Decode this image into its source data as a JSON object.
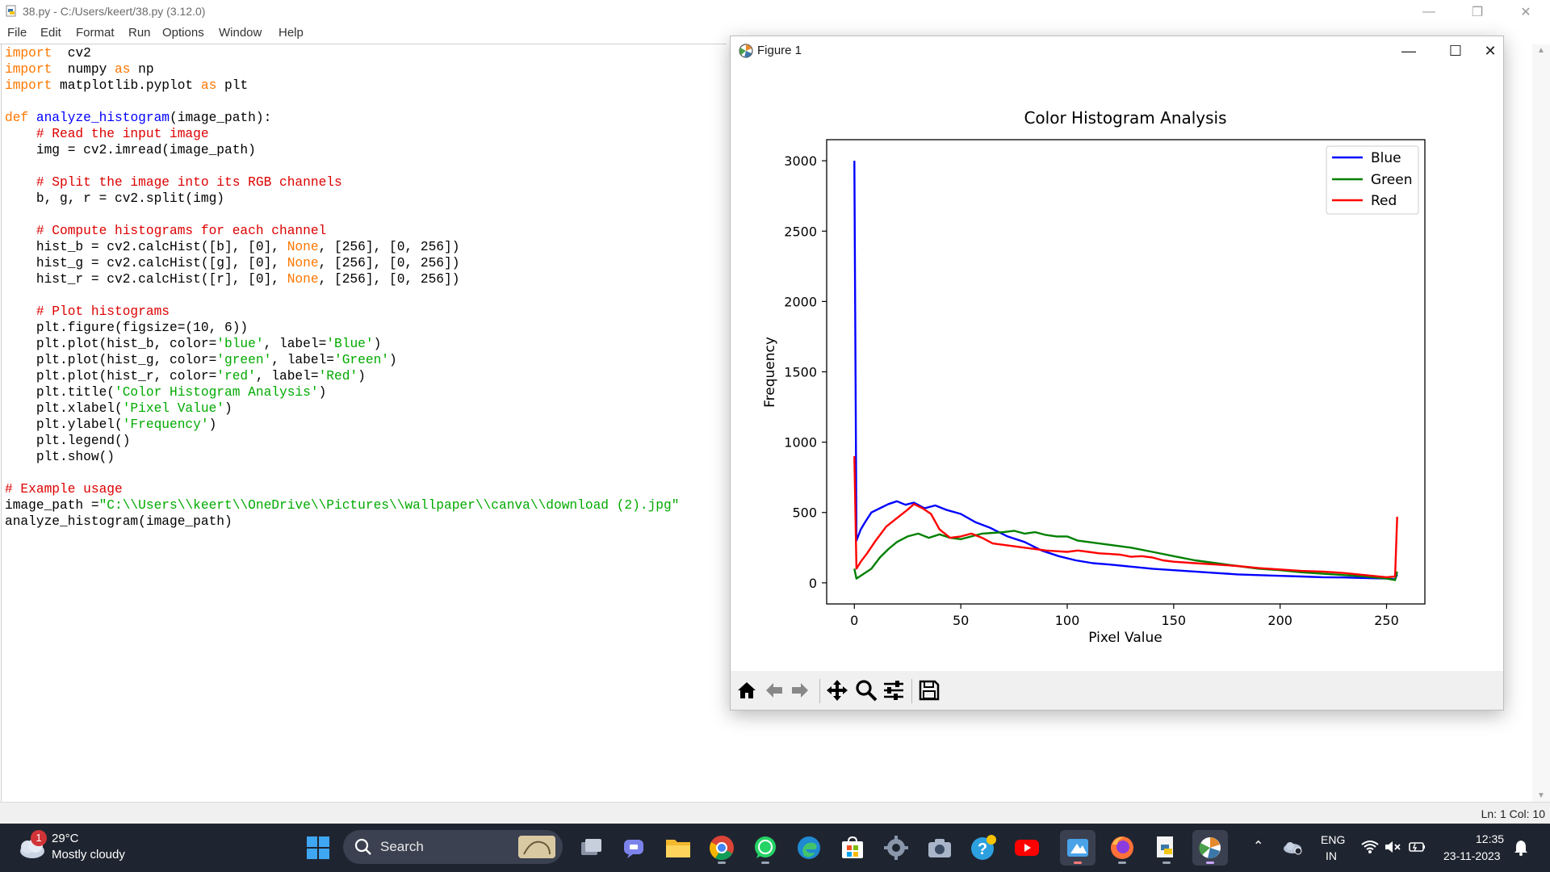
{
  "idle": {
    "title": "38.py - C:/Users/keert/38.py (3.12.0)",
    "menu": [
      "File",
      "Edit",
      "Format",
      "Run",
      "Options",
      "Window",
      "Help"
    ],
    "status": "Ln: 1   Col: 10"
  },
  "code_lines": [
    [
      [
        "kw",
        "import"
      ],
      [
        "",
        "  cv2"
      ]
    ],
    [
      [
        "kw",
        "import"
      ],
      [
        "",
        "  numpy "
      ],
      [
        "kw",
        "as"
      ],
      [
        "",
        " np"
      ]
    ],
    [
      [
        "kw",
        "import"
      ],
      [
        "",
        " matplotlib.pyplot "
      ],
      [
        "kw",
        "as"
      ],
      [
        "",
        " plt"
      ]
    ],
    [],
    [
      [
        "kw",
        "def"
      ],
      [
        "",
        " "
      ],
      [
        "fn",
        "analyze_histogram"
      ],
      [
        "",
        "(image_path):"
      ]
    ],
    [
      [
        "",
        "    "
      ],
      [
        "cm",
        "# Read the input image"
      ]
    ],
    [
      [
        "",
        "    img = cv2.imread(image_path)"
      ]
    ],
    [],
    [
      [
        "",
        "    "
      ],
      [
        "cm",
        "# Split the image into its RGB channels"
      ]
    ],
    [
      [
        "",
        "    b, g, r = cv2.split(img)"
      ]
    ],
    [],
    [
      [
        "",
        "    "
      ],
      [
        "cm",
        "# Compute histograms for each channel"
      ]
    ],
    [
      [
        "",
        "    hist_b = cv2.calcHist([b], [0], "
      ],
      [
        "kw",
        "None"
      ],
      [
        "",
        ", [256], [0, 256])"
      ]
    ],
    [
      [
        "",
        "    hist_g = cv2.calcHist([g], [0], "
      ],
      [
        "kw",
        "None"
      ],
      [
        "",
        ", [256], [0, 256])"
      ]
    ],
    [
      [
        "",
        "    hist_r = cv2.calcHist([r], [0], "
      ],
      [
        "kw",
        "None"
      ],
      [
        "",
        ", [256], [0, 256])"
      ]
    ],
    [],
    [
      [
        "",
        "    "
      ],
      [
        "cm",
        "# Plot histograms"
      ]
    ],
    [
      [
        "",
        "    plt.figure(figsize=(10, 6))"
      ]
    ],
    [
      [
        "",
        "    plt.plot(hist_b, color="
      ],
      [
        "st",
        "'blue'"
      ],
      [
        "",
        ", label="
      ],
      [
        "st",
        "'Blue'"
      ],
      [
        "",
        ")"
      ]
    ],
    [
      [
        "",
        "    plt.plot(hist_g, color="
      ],
      [
        "st",
        "'green'"
      ],
      [
        "",
        ", label="
      ],
      [
        "st",
        "'Green'"
      ],
      [
        "",
        ")"
      ]
    ],
    [
      [
        "",
        "    plt.plot(hist_r, color="
      ],
      [
        "st",
        "'red'"
      ],
      [
        "",
        ", label="
      ],
      [
        "st",
        "'Red'"
      ],
      [
        "",
        ")"
      ]
    ],
    [
      [
        "",
        "    plt.title("
      ],
      [
        "st",
        "'Color Histogram Analysis'"
      ],
      [
        "",
        ")"
      ]
    ],
    [
      [
        "",
        "    plt.xlabel("
      ],
      [
        "st",
        "'Pixel Value'"
      ],
      [
        "",
        ")"
      ]
    ],
    [
      [
        "",
        "    plt.ylabel("
      ],
      [
        "st",
        "'Frequency'"
      ],
      [
        "",
        ")"
      ]
    ],
    [
      [
        "",
        "    plt.legend()"
      ]
    ],
    [
      [
        "",
        "    plt.show()"
      ]
    ],
    [],
    [
      [
        "cm",
        "# Example usage"
      ]
    ],
    [
      [
        "",
        "image_path ="
      ],
      [
        "st",
        "\"C:\\\\Users\\\\keert\\\\OneDrive\\\\Pictures\\\\wallpaper\\\\canva\\\\download (2).jpg\""
      ]
    ],
    [
      [
        "",
        "analyze_histogram(image_path)"
      ]
    ]
  ],
  "figure": {
    "title": "Figure 1"
  },
  "chart_data": {
    "type": "line",
    "title": "Color Histogram Analysis",
    "xlabel": "Pixel Value",
    "ylabel": "Frequency",
    "xlim": [
      -13,
      268
    ],
    "ylim": [
      -150,
      3150
    ],
    "xticks": [
      0,
      50,
      100,
      150,
      200,
      250
    ],
    "yticks": [
      0,
      500,
      1000,
      1500,
      2000,
      2500,
      3000
    ],
    "legend_position": "top-right",
    "series": [
      {
        "name": "Blue",
        "color": "#0000ff",
        "points": [
          [
            0,
            3000
          ],
          [
            1,
            300
          ],
          [
            3,
            380
          ],
          [
            5,
            430
          ],
          [
            8,
            500
          ],
          [
            12,
            530
          ],
          [
            16,
            560
          ],
          [
            20,
            580
          ],
          [
            24,
            555
          ],
          [
            28,
            570
          ],
          [
            33,
            530
          ],
          [
            38,
            550
          ],
          [
            43,
            520
          ],
          [
            50,
            490
          ],
          [
            57,
            430
          ],
          [
            64,
            390
          ],
          [
            72,
            330
          ],
          [
            80,
            290
          ],
          [
            88,
            230
          ],
          [
            96,
            190
          ],
          [
            104,
            160
          ],
          [
            112,
            140
          ],
          [
            120,
            130
          ],
          [
            130,
            115
          ],
          [
            140,
            100
          ],
          [
            150,
            90
          ],
          [
            160,
            80
          ],
          [
            170,
            70
          ],
          [
            180,
            60
          ],
          [
            190,
            55
          ],
          [
            200,
            50
          ],
          [
            210,
            45
          ],
          [
            220,
            40
          ],
          [
            230,
            38
          ],
          [
            240,
            34
          ],
          [
            250,
            30
          ],
          [
            254,
            25
          ],
          [
            255,
            60
          ]
        ]
      },
      {
        "name": "Green",
        "color": "#008000",
        "points": [
          [
            0,
            100
          ],
          [
            1,
            30
          ],
          [
            4,
            60
          ],
          [
            8,
            100
          ],
          [
            12,
            180
          ],
          [
            16,
            240
          ],
          [
            20,
            290
          ],
          [
            25,
            330
          ],
          [
            30,
            350
          ],
          [
            35,
            320
          ],
          [
            40,
            345
          ],
          [
            45,
            320
          ],
          [
            50,
            310
          ],
          [
            55,
            330
          ],
          [
            60,
            350
          ],
          [
            65,
            355
          ],
          [
            70,
            360
          ],
          [
            75,
            370
          ],
          [
            80,
            350
          ],
          [
            85,
            360
          ],
          [
            90,
            340
          ],
          [
            95,
            330
          ],
          [
            100,
            330
          ],
          [
            105,
            300
          ],
          [
            110,
            290
          ],
          [
            115,
            280
          ],
          [
            120,
            270
          ],
          [
            125,
            260
          ],
          [
            130,
            250
          ],
          [
            140,
            220
          ],
          [
            150,
            190
          ],
          [
            160,
            160
          ],
          [
            170,
            140
          ],
          [
            180,
            120
          ],
          [
            190,
            100
          ],
          [
            200,
            90
          ],
          [
            210,
            75
          ],
          [
            220,
            65
          ],
          [
            230,
            55
          ],
          [
            240,
            45
          ],
          [
            250,
            30
          ],
          [
            254,
            20
          ],
          [
            255,
            80
          ]
        ]
      },
      {
        "name": "Red",
        "color": "#ff0000",
        "points": [
          [
            0,
            900
          ],
          [
            1,
            100
          ],
          [
            3,
            150
          ],
          [
            6,
            210
          ],
          [
            10,
            300
          ],
          [
            15,
            400
          ],
          [
            20,
            460
          ],
          [
            25,
            520
          ],
          [
            28,
            560
          ],
          [
            32,
            530
          ],
          [
            36,
            490
          ],
          [
            40,
            380
          ],
          [
            45,
            320
          ],
          [
            50,
            330
          ],
          [
            55,
            350
          ],
          [
            60,
            320
          ],
          [
            65,
            280
          ],
          [
            70,
            270
          ],
          [
            75,
            260
          ],
          [
            80,
            250
          ],
          [
            85,
            240
          ],
          [
            90,
            230
          ],
          [
            95,
            225
          ],
          [
            100,
            220
          ],
          [
            105,
            230
          ],
          [
            110,
            220
          ],
          [
            115,
            210
          ],
          [
            120,
            205
          ],
          [
            125,
            200
          ],
          [
            130,
            185
          ],
          [
            135,
            190
          ],
          [
            140,
            180
          ],
          [
            145,
            160
          ],
          [
            150,
            150
          ],
          [
            160,
            140
          ],
          [
            170,
            130
          ],
          [
            180,
            120
          ],
          [
            190,
            105
          ],
          [
            200,
            95
          ],
          [
            210,
            85
          ],
          [
            220,
            80
          ],
          [
            230,
            70
          ],
          [
            240,
            55
          ],
          [
            250,
            40
          ],
          [
            254,
            45
          ],
          [
            255,
            470
          ]
        ]
      }
    ]
  },
  "taskbar": {
    "weather_temp": "29°C",
    "weather_desc": "Mostly cloudy",
    "weather_badge": "1",
    "search_label": "Search",
    "lang_1": "ENG",
    "lang_2": "IN",
    "time": "12:35",
    "date": "23-11-2023",
    "apps": [
      "windows-start",
      "task-view",
      "teams-chat",
      "file-explorer",
      "chrome",
      "whatsapp",
      "edge",
      "microsoft-store",
      "settings",
      "camera",
      "skype",
      "youtube",
      "paint",
      "firefox",
      "python-idle",
      "matplotlib-figure"
    ]
  }
}
